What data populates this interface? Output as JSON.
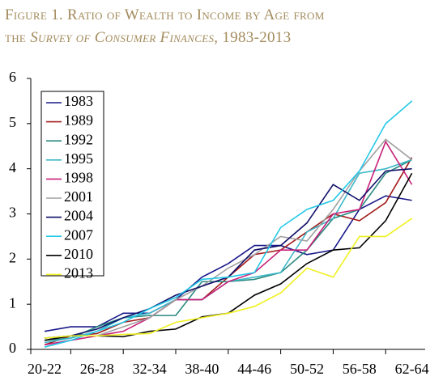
{
  "chart_data": {
    "type": "line",
    "title": {
      "line1": "Figure 1. Ratio of Wealth to Income by Age from",
      "line2": [
        "the ",
        "Survey of Consumer Finances",
        ", 1983-2013"
      ]
    },
    "categories": [
      "20-22",
      null,
      "26-28",
      null,
      "32-34",
      null,
      "38-40",
      null,
      "44-46",
      null,
      "50-52",
      null,
      "56-58",
      null,
      "62-64"
    ],
    "ylim": [
      0,
      6
    ],
    "yticks": [
      0,
      1,
      2,
      3,
      4,
      5,
      6
    ],
    "grid": false,
    "legend": "upper left",
    "series": [
      {
        "name": "1983",
        "color": "#1a1a8c",
        "values": [
          0.4,
          0.5,
          0.5,
          0.8,
          0.8,
          1.1,
          1.6,
          1.9,
          2.3,
          2.3,
          2.1,
          2.2,
          3.1,
          3.4,
          3.3
        ]
      },
      {
        "name": "1989",
        "color": "#a31a1a",
        "values": [
          0.1,
          0.3,
          0.35,
          0.6,
          0.7,
          1.1,
          1.1,
          1.6,
          2.1,
          2.2,
          2.6,
          3.0,
          2.85,
          3.25,
          4.25
        ]
      },
      {
        "name": "1992",
        "color": "#2a8a80",
        "values": [
          0.2,
          0.25,
          0.5,
          0.7,
          0.75,
          0.75,
          1.5,
          1.5,
          1.55,
          1.7,
          2.2,
          2.9,
          3.1,
          3.9,
          4.2
        ]
      },
      {
        "name": "1995",
        "color": "#3cb8c8",
        "values": [
          0.15,
          0.25,
          0.4,
          0.7,
          0.8,
          1.1,
          1.1,
          1.5,
          1.6,
          1.7,
          2.6,
          2.9,
          3.9,
          4.0,
          4.2
        ]
      },
      {
        "name": "1998",
        "color": "#c8207a",
        "values": [
          0.1,
          0.2,
          0.3,
          0.4,
          0.7,
          1.1,
          1.1,
          1.5,
          1.7,
          2.2,
          2.2,
          3.0,
          3.1,
          4.6,
          3.65
        ]
      },
      {
        "name": "2001",
        "color": "#a0a0a0",
        "values": [
          0.2,
          0.3,
          0.3,
          0.5,
          0.7,
          1.1,
          1.4,
          1.8,
          2.1,
          2.5,
          2.4,
          3.1,
          3.95,
          4.65,
          4.2
        ]
      },
      {
        "name": "2004",
        "color": "#10106a",
        "values": [
          0.25,
          0.3,
          0.45,
          0.7,
          0.9,
          1.2,
          1.4,
          1.6,
          2.2,
          2.3,
          2.8,
          3.65,
          3.3,
          3.95,
          4.0
        ]
      },
      {
        "name": "2007",
        "color": "#22c8e8",
        "values": [
          0.05,
          0.2,
          0.4,
          0.6,
          0.9,
          1.15,
          1.55,
          1.6,
          1.7,
          2.7,
          3.1,
          3.3,
          3.95,
          5.0,
          5.5
        ]
      },
      {
        "name": "2010",
        "color": "#000000",
        "values": [
          0.2,
          0.3,
          0.3,
          0.28,
          0.4,
          0.45,
          0.72,
          0.8,
          1.2,
          1.45,
          1.9,
          2.2,
          2.25,
          2.85,
          3.9
        ]
      },
      {
        "name": "2013",
        "color": "#f0f020",
        "values": [
          0.25,
          0.3,
          0.3,
          0.33,
          0.35,
          0.6,
          0.7,
          0.8,
          0.95,
          1.25,
          1.8,
          1.6,
          2.5,
          2.5,
          2.9
        ]
      }
    ]
  }
}
